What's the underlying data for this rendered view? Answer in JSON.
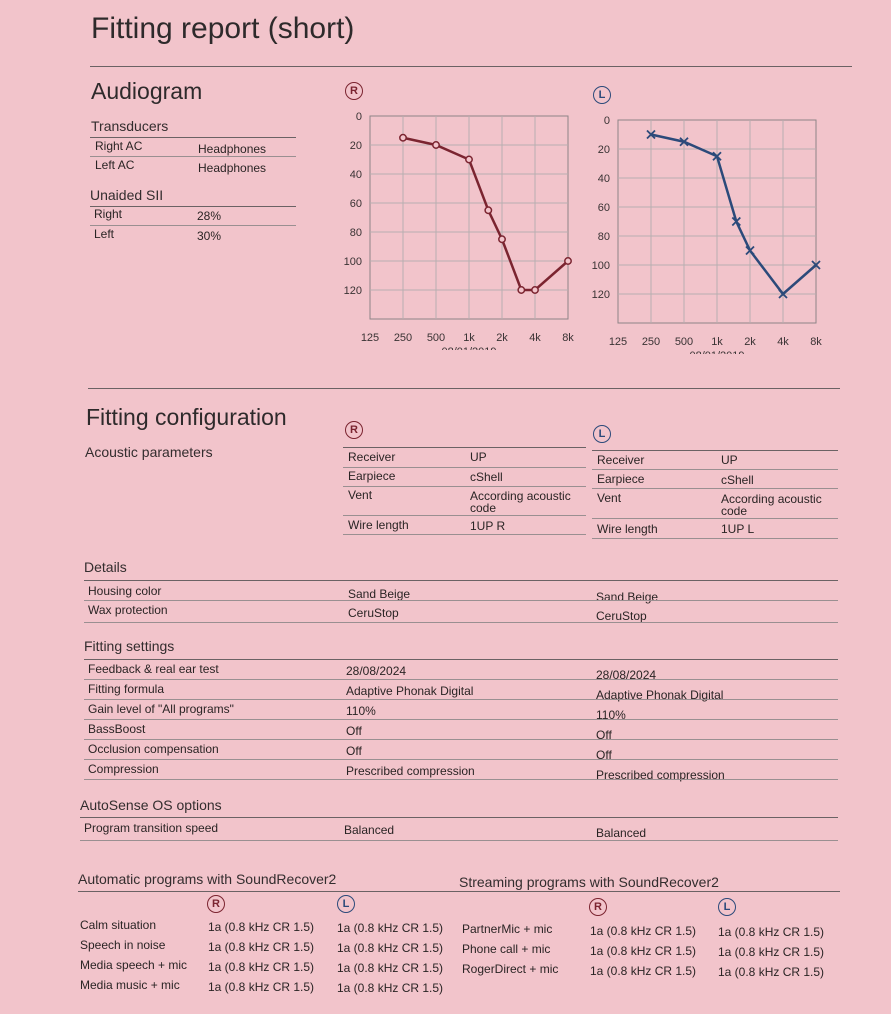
{
  "title": "Fitting report (short)",
  "audiogram": {
    "heading": "Audiogram",
    "right_symbol": "R",
    "left_symbol": "L",
    "transducers": {
      "heading": "Transducers",
      "rows": [
        [
          "Right AC",
          "Headphones"
        ],
        [
          "Left AC",
          "Headphones"
        ]
      ]
    },
    "sii": {
      "heading": "Unaided SII",
      "rows": [
        [
          "Right",
          "28%"
        ],
        [
          "Left",
          "30%"
        ]
      ]
    },
    "date": "08/01/2019"
  },
  "chart_data": [
    {
      "type": "line",
      "ear": "right",
      "x": [
        "125",
        "250",
        "500",
        "1k",
        "2k",
        "4k",
        "8k"
      ],
      "x_values_hz": [
        250,
        500,
        1000,
        1500,
        2000,
        3000,
        4000,
        8000
      ],
      "y_values_db": [
        15,
        20,
        30,
        65,
        85,
        120,
        120,
        100
      ],
      "yticks": [
        0,
        20,
        40,
        60,
        80,
        100,
        120
      ],
      "ylim": [
        0,
        120
      ],
      "color": "#7b2430",
      "marker": "circle",
      "xlabel": "08/01/2019"
    },
    {
      "type": "line",
      "ear": "left",
      "x": [
        "125",
        "250",
        "500",
        "1k",
        "2k",
        "4k",
        "8k"
      ],
      "x_values_hz": [
        250,
        500,
        1000,
        1500,
        2000,
        4000,
        8000
      ],
      "y_values_db": [
        10,
        15,
        25,
        70,
        90,
        120,
        100
      ],
      "yticks": [
        0,
        20,
        40,
        60,
        80,
        100,
        120
      ],
      "ylim": [
        0,
        120
      ],
      "color": "#2c4a7a",
      "marker": "cross",
      "xlabel": "08/01/2019"
    }
  ],
  "fitting": {
    "heading": "Fitting configuration",
    "acoustic_heading": "Acoustic parameters",
    "right": {
      "receiver": [
        "Receiver",
        "UP"
      ],
      "earpiece": [
        "Earpiece",
        "cShell"
      ],
      "vent": [
        "Vent",
        "According acoustic",
        "code"
      ],
      "wire": [
        "Wire length",
        "1UP R"
      ]
    },
    "left": {
      "receiver": [
        "Receiver",
        "UP"
      ],
      "earpiece": [
        "Earpiece",
        "cShell"
      ],
      "vent": [
        "Vent",
        "According acoustic",
        "code"
      ],
      "wire": [
        "Wire length",
        "1UP L"
      ]
    },
    "details_heading": "Details",
    "details": [
      [
        "Housing color",
        "Sand Beige",
        "Sand Beige"
      ],
      [
        "Wax protection",
        "CeruStop",
        "CeruStop"
      ]
    ],
    "settings_heading": "Fitting settings",
    "settings": [
      [
        "Feedback & real ear test",
        "28/08/2024",
        "28/08/2024"
      ],
      [
        "Fitting formula",
        "Adaptive Phonak Digital",
        "Adaptive Phonak Digital"
      ],
      [
        "Gain level of \"All programs\"",
        "110%",
        "110%"
      ],
      [
        "BassBoost",
        "Off",
        "Off"
      ],
      [
        "Occlusion compensation",
        "Off",
        "Off"
      ],
      [
        "Compression",
        "Prescribed compression",
        "Prescribed compression"
      ]
    ],
    "autosense_heading": "AutoSense OS options",
    "autosense": [
      [
        "Program transition speed",
        "Balanced",
        "Balanced"
      ]
    ]
  },
  "programs": {
    "auto_heading": "Automatic programs with SoundRecover2",
    "stream_heading": "Streaming programs with SoundRecover2",
    "auto": [
      [
        "Calm situation",
        "1a (0.8 kHz CR 1.5)",
        "1a (0.8 kHz CR 1.5)"
      ],
      [
        "Speech in noise",
        "1a (0.8 kHz CR 1.5)",
        "1a (0.8 kHz CR 1.5)"
      ],
      [
        "Media speech + mic",
        "1a (0.8 kHz CR 1.5)",
        "1a (0.8 kHz CR 1.5)"
      ],
      [
        "Media music + mic",
        "1a (0.8 kHz CR 1.5)",
        "1a (0.8 kHz CR 1.5)"
      ]
    ],
    "stream": [
      [
        "PartnerMic + mic",
        "1a (0.8 kHz CR 1.5)",
        "1a (0.8 kHz CR 1.5)"
      ],
      [
        "Phone call + mic",
        "1a (0.8 kHz CR 1.5)",
        "1a (0.8 kHz CR 1.5)"
      ],
      [
        "RogerDirect + mic",
        "1a (0.8 kHz CR 1.5)",
        "1a (0.8 kHz CR 1.5)"
      ]
    ]
  }
}
